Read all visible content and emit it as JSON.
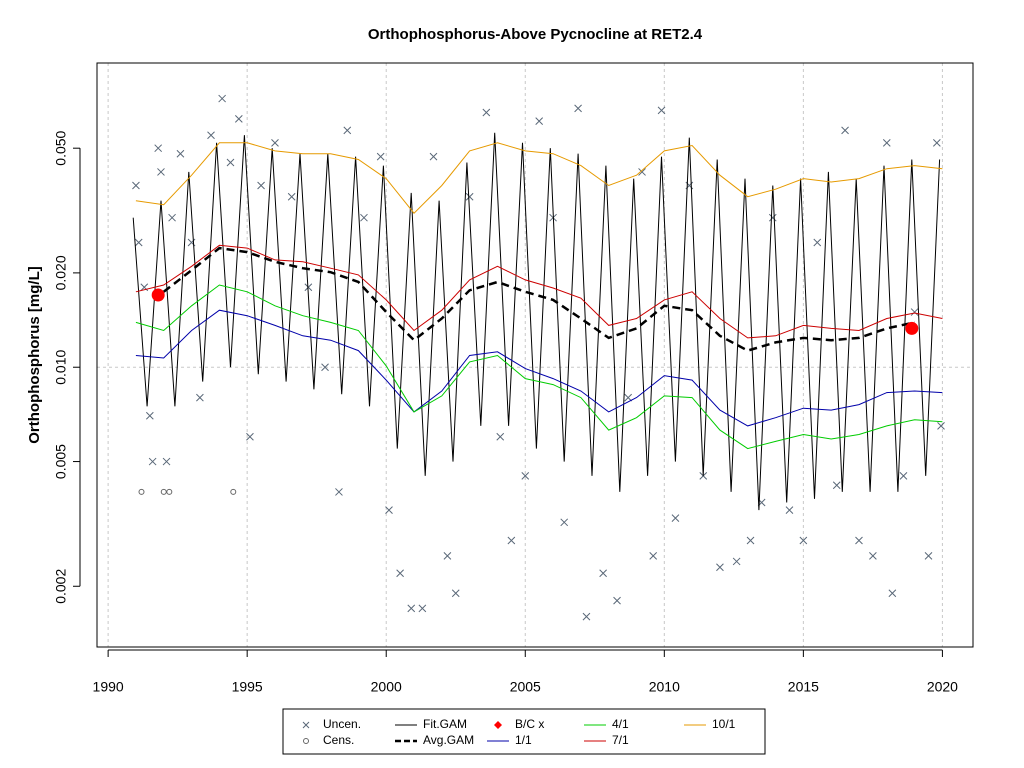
{
  "chart_data": {
    "type": "line",
    "title": "Orthophosphorus-Above Pycnocline at RET2.4",
    "y_label": "Orthophosphorus [mg/L]",
    "log_y": true,
    "grid": true,
    "reference_line": 0.01,
    "xlim": [
      1989.6,
      2021.1
    ],
    "ylim": [
      0.00128,
      0.0935
    ],
    "xticks": [
      1990,
      1995,
      2000,
      2005,
      2010,
      2015,
      2020
    ],
    "yticks": [
      0.002,
      0.005,
      {
        "value": 0.01,
        "label": "0.010"
      },
      {
        "value": 0.02,
        "label": "0.020"
      },
      {
        "value": 0.05,
        "label": "0.050"
      }
    ],
    "series": [
      {
        "name": "Uncen.",
        "color": "#5a6878",
        "marker": "x",
        "x": [
          1991.0,
          1991.1,
          1991.3,
          1991.5,
          1991.6,
          1991.8,
          1991.9,
          1992.1,
          1992.3,
          1992.6,
          1993.0,
          1993.3,
          1993.7,
          1994.1,
          1994.4,
          1994.7,
          1995.1,
          1995.5,
          1996.0,
          1996.6,
          1997.2,
          1997.8,
          1998.3,
          1998.6,
          1999.2,
          1999.8,
          2000.1,
          2000.5,
          2000.9,
          2001.3,
          2001.7,
          2002.2,
          2002.5,
          2003.0,
          2003.6,
          2004.1,
          2004.5,
          2005.0,
          2005.5,
          2006.0,
          2006.4,
          2006.9,
          2007.2,
          2007.8,
          2008.3,
          2008.7,
          2009.2,
          2009.6,
          2009.9,
          2010.4,
          2010.9,
          2011.4,
          2012.0,
          2012.6,
          2013.1,
          2013.5,
          2013.9,
          2014.5,
          2015.0,
          2015.5,
          2016.2,
          2016.5,
          2017.0,
          2017.5,
          2018.0,
          2018.2,
          2018.6,
          2019.0,
          2019.5,
          2019.8,
          2019.95
        ],
        "values": [
          0.038,
          0.025,
          0.018,
          0.007,
          0.005,
          0.05,
          0.042,
          0.005,
          0.03,
          0.048,
          0.025,
          0.008,
          0.055,
          0.072,
          0.045,
          0.062,
          0.006,
          0.038,
          0.052,
          0.035,
          0.018,
          0.01,
          0.004,
          0.057,
          0.03,
          0.047,
          0.0035,
          0.0022,
          0.0017,
          0.0017,
          0.047,
          0.0025,
          0.0019,
          0.035,
          0.065,
          0.006,
          0.0028,
          0.0045,
          0.061,
          0.03,
          0.0032,
          0.067,
          0.0016,
          0.0022,
          0.0018,
          0.008,
          0.042,
          0.0025,
          0.066,
          0.0033,
          0.038,
          0.0045,
          0.0023,
          0.0024,
          0.0028,
          0.0037,
          0.03,
          0.0035,
          0.0028,
          0.025,
          0.0042,
          0.057,
          0.0028,
          0.0025,
          0.052,
          0.0019,
          0.0045,
          0.015,
          0.0025,
          0.052,
          0.0065
        ]
      },
      {
        "name": "Cens.",
        "color": "#666666",
        "marker": "o",
        "x": [
          1991.2,
          1992.0,
          1992.2,
          1994.5
        ],
        "values": [
          0.004,
          0.004,
          0.004,
          0.004
        ]
      },
      {
        "name": "Fit.GAM",
        "color": "#000000",
        "line": "solid",
        "x": [
          1990.9,
          1991.4,
          1991.9,
          1992.4,
          1992.9,
          1993.4,
          1993.9,
          1994.4,
          1994.9,
          1995.4,
          1995.9,
          1996.4,
          1996.9,
          1997.4,
          1997.9,
          1998.4,
          1998.9,
          1999.4,
          1999.9,
          2000.4,
          2000.9,
          2001.4,
          2001.9,
          2002.4,
          2002.9,
          2003.4,
          2003.9,
          2004.4,
          2004.9,
          2005.4,
          2005.9,
          2006.4,
          2006.9,
          2007.4,
          2007.9,
          2008.4,
          2008.9,
          2009.4,
          2009.9,
          2010.4,
          2010.9,
          2011.4,
          2011.9,
          2012.4,
          2012.9,
          2013.4,
          2013.9,
          2014.4,
          2014.9,
          2015.4,
          2015.9,
          2016.4,
          2016.9,
          2017.4,
          2017.9,
          2018.4,
          2018.9,
          2019.4,
          2019.9
        ],
        "values": [
          0.03,
          0.0075,
          0.034,
          0.0075,
          0.042,
          0.009,
          0.052,
          0.01,
          0.055,
          0.0095,
          0.05,
          0.009,
          0.048,
          0.0085,
          0.048,
          0.0082,
          0.047,
          0.0075,
          0.044,
          0.0055,
          0.036,
          0.0045,
          0.034,
          0.005,
          0.045,
          0.0065,
          0.056,
          0.0065,
          0.052,
          0.0055,
          0.05,
          0.005,
          0.048,
          0.0045,
          0.044,
          0.004,
          0.04,
          0.0045,
          0.047,
          0.005,
          0.054,
          0.0045,
          0.046,
          0.004,
          0.04,
          0.0035,
          0.038,
          0.0037,
          0.04,
          0.0038,
          0.042,
          0.004,
          0.04,
          0.004,
          0.044,
          0.004,
          0.046,
          0.0045,
          0.046
        ]
      },
      {
        "name": "Avg.GAM",
        "color": "#000000",
        "line": "dashed",
        "x": [
          1992,
          1993,
          1994,
          1995,
          1996,
          1997,
          1998,
          1999,
          2000,
          2001,
          2002,
          2003,
          2004,
          2005,
          2006,
          2007,
          2008,
          2009,
          2010,
          2011,
          2012,
          2013,
          2014,
          2015,
          2016,
          2017,
          2018,
          2019
        ],
        "values": [
          0.0174,
          0.0204,
          0.024,
          0.0233,
          0.0217,
          0.0207,
          0.0201,
          0.0187,
          0.015,
          0.0122,
          0.0143,
          0.0176,
          0.0187,
          0.0174,
          0.0164,
          0.0143,
          0.0124,
          0.0133,
          0.0157,
          0.0152,
          0.0126,
          0.0113,
          0.012,
          0.0124,
          0.0122,
          0.0124,
          0.0133,
          0.0139
        ]
      },
      {
        "name": "B/C x",
        "color": "#ff0000",
        "marker": "dot",
        "x": [
          1991.8,
          2018.9
        ],
        "values": [
          0.017,
          0.0133
        ]
      },
      {
        "name": "1/1",
        "color": "#0000aa",
        "line": "solid",
        "x": [
          1991,
          1992,
          1993,
          1994,
          1995,
          1996,
          1997,
          1998,
          1999,
          2000,
          2001,
          2002,
          2003,
          2004,
          2005,
          2006,
          2007,
          2008,
          2009,
          2010,
          2011,
          2012,
          2013,
          2014,
          2015,
          2016,
          2017,
          2018,
          2019,
          2020
        ],
        "values": [
          0.0109,
          0.0107,
          0.0131,
          0.0152,
          0.0146,
          0.0136,
          0.0126,
          0.0122,
          0.0113,
          0.0091,
          0.0072,
          0.0084,
          0.0109,
          0.0112,
          0.0099,
          0.0092,
          0.0084,
          0.0072,
          0.008,
          0.0094,
          0.0091,
          0.0073,
          0.0065,
          0.0069,
          0.0074,
          0.0073,
          0.0076,
          0.0083,
          0.0084,
          0.0083
        ]
      },
      {
        "name": "4/1",
        "color": "#00cc00",
        "line": "solid",
        "x": [
          1991,
          1992,
          1993,
          1994,
          1995,
          1996,
          1997,
          1998,
          1999,
          2000,
          2001,
          2002,
          2003,
          2004,
          2005,
          2006,
          2007,
          2008,
          2009,
          2010,
          2011,
          2012,
          2013,
          2014,
          2015,
          2016,
          2017,
          2018,
          2019,
          2020
        ],
        "values": [
          0.0139,
          0.0131,
          0.0157,
          0.0183,
          0.0174,
          0.0157,
          0.0146,
          0.0139,
          0.0131,
          0.0101,
          0.0072,
          0.0081,
          0.0104,
          0.0109,
          0.0092,
          0.0088,
          0.008,
          0.0063,
          0.0069,
          0.0081,
          0.008,
          0.0063,
          0.0055,
          0.0058,
          0.0061,
          0.0059,
          0.0061,
          0.0065,
          0.0068,
          0.0067
        ]
      },
      {
        "name": "7/1",
        "color": "#cc0000",
        "line": "solid",
        "x": [
          1991,
          1992,
          1993,
          1994,
          1995,
          1996,
          1997,
          1998,
          1999,
          2000,
          2001,
          2002,
          2003,
          2004,
          2005,
          2006,
          2007,
          2008,
          2009,
          2010,
          2011,
          2012,
          2013,
          2014,
          2015,
          2016,
          2017,
          2018,
          2019,
          2020
        ],
        "values": [
          0.0174,
          0.0183,
          0.021,
          0.0245,
          0.024,
          0.022,
          0.0217,
          0.0207,
          0.0197,
          0.0164,
          0.0131,
          0.0152,
          0.019,
          0.021,
          0.019,
          0.0179,
          0.0166,
          0.0136,
          0.0143,
          0.0164,
          0.0174,
          0.0143,
          0.0124,
          0.0126,
          0.0136,
          0.0133,
          0.0131,
          0.0143,
          0.0149,
          0.0143
        ]
      },
      {
        "name": "10/1",
        "color": "#e69a00",
        "line": "solid",
        "x": [
          1991,
          1992,
          1993,
          1994,
          1995,
          1996,
          1997,
          1998,
          1999,
          2000,
          2001,
          2002,
          2003,
          2004,
          2005,
          2006,
          2007,
          2008,
          2009,
          2010,
          2011,
          2012,
          2013,
          2014,
          2015,
          2016,
          2017,
          2018,
          2019,
          2020
        ],
        "values": [
          0.034,
          0.033,
          0.041,
          0.052,
          0.052,
          0.049,
          0.048,
          0.048,
          0.046,
          0.04,
          0.031,
          0.038,
          0.049,
          0.052,
          0.049,
          0.048,
          0.044,
          0.038,
          0.041,
          0.049,
          0.051,
          0.041,
          0.035,
          0.037,
          0.04,
          0.039,
          0.04,
          0.043,
          0.044,
          0.043
        ]
      }
    ]
  }
}
